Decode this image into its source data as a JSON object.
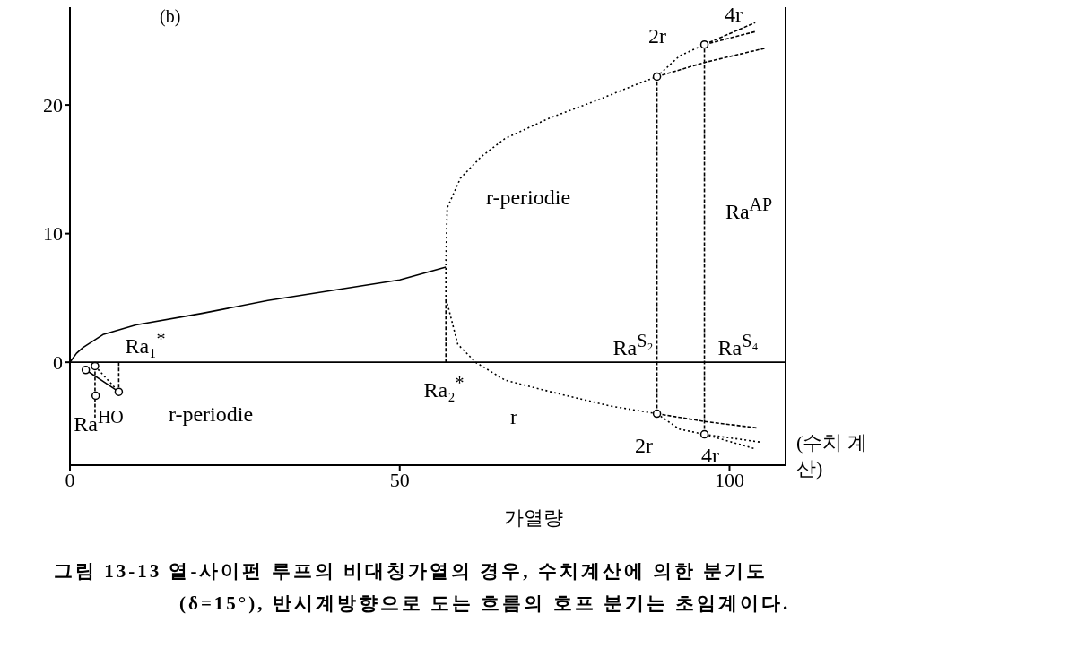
{
  "chart_data": {
    "type": "line",
    "xlabel": "가열량",
    "xlim": [
      0,
      108.5
    ],
    "ylim": [
      -8,
      27.6
    ],
    "xticks": [
      0,
      50,
      100
    ],
    "yticks": [
      0,
      10,
      20
    ],
    "series": [
      {
        "type": "line",
        "color": "#000000",
        "line_style": "solid",
        "x": [
          0,
          1,
          2,
          5,
          10,
          20,
          30,
          40,
          50,
          57
        ],
        "values": [
          0,
          0.7,
          1.15,
          2.15,
          2.9,
          3.8,
          4.8,
          5.6,
          6.4,
          7.4
        ]
      },
      {
        "type": "line",
        "color": "#000000",
        "line_style": "solid",
        "x": [
          0,
          108.5
        ],
        "values": [
          0,
          0
        ]
      },
      {
        "type": "line",
        "color": "#000000",
        "line_style": "dotted",
        "x": [
          89,
          81.9,
          73.7,
          66,
          61.5,
          58.8,
          57.4,
          57,
          57,
          57.2,
          59.2,
          62.4,
          66,
          72.8,
          79.6,
          86.4,
          89
        ],
        "values": [
          -4,
          -3.4,
          -2.4,
          -1.4,
          0,
          1.4,
          4.2,
          4.9,
          7.8,
          12,
          14.3,
          16,
          17.4,
          19,
          20.3,
          21.7,
          22.2
        ]
      },
      {
        "type": "line",
        "color": "#000000",
        "line_style": "dashed",
        "x": [
          57,
          57
        ],
        "values": [
          0,
          4.9
        ]
      },
      {
        "type": "line",
        "color": "#000000",
        "line_style": "dashed",
        "x": [
          89,
          96.2,
          105.3
        ],
        "values": [
          22.2,
          23.3,
          24.4
        ]
      },
      {
        "type": "line",
        "color": "#000000",
        "line_style": "dotted",
        "x": [
          89,
          92.4,
          96.2
        ],
        "values": [
          22.2,
          23.8,
          24.7
        ]
      },
      {
        "type": "line",
        "color": "#000000",
        "line_style": "dashed",
        "x": [
          96.2,
          103.9
        ],
        "values": [
          24.7,
          25.7
        ]
      },
      {
        "type": "line",
        "color": "#000000",
        "line_style": "dashed",
        "x": [
          96.2,
          103.9
        ],
        "values": [
          24.7,
          26.4
        ]
      },
      {
        "type": "line",
        "color": "#000000",
        "line_style": "dashed",
        "x": [
          89,
          96.2,
          104.1
        ],
        "values": [
          -4,
          -4.6,
          -5.1
        ]
      },
      {
        "type": "line",
        "color": "#000000",
        "line_style": "dotted",
        "x": [
          89,
          92.4,
          96.2
        ],
        "values": [
          -4,
          -5.2,
          -5.6
        ]
      },
      {
        "type": "line",
        "color": "#000000",
        "line_style": "dotted",
        "x": [
          96.2,
          104.6
        ],
        "values": [
          -5.6,
          -6.2
        ]
      },
      {
        "type": "line",
        "color": "#000000",
        "line_style": "dotted",
        "x": [
          96.2,
          103.7
        ],
        "values": [
          -5.6,
          -6.7
        ]
      },
      {
        "type": "line",
        "color": "#000000",
        "line_style": "dashed",
        "x": [
          89,
          89
        ],
        "values": [
          -4,
          22.2
        ]
      },
      {
        "type": "line",
        "color": "#000000",
        "line_style": "dashed",
        "x": [
          96.2,
          96.2
        ],
        "values": [
          -5.6,
          24.7
        ]
      },
      {
        "type": "line",
        "color": "#000000",
        "line_style": "solid",
        "x": [
          2.4,
          4.5,
          7.4
        ],
        "values": [
          -0.6,
          -1.3,
          -2.3
        ]
      },
      {
        "type": "line",
        "color": "#000000",
        "line_style": "dotted",
        "x": [
          3.8,
          7.4
        ],
        "values": [
          -0.3,
          -2.3
        ]
      },
      {
        "type": "line",
        "color": "#000000",
        "line_style": "dashed",
        "x": [
          7.4,
          7.4
        ],
        "values": [
          0,
          -2.3
        ]
      },
      {
        "type": "line",
        "color": "#000000",
        "line_style": "dashed",
        "x": [
          3.8,
          3.8
        ],
        "values": [
          -0.3,
          -4.3
        ]
      },
      {
        "type": "scatter",
        "color": "#000000",
        "marker": "circle",
        "x": [
          2.4,
          3.8,
          7.4,
          3.9,
          89,
          96.2,
          89,
          96.2
        ],
        "values": [
          -0.6,
          -0.3,
          -2.3,
          -2.6,
          22.2,
          24.7,
          -4,
          -5.6
        ]
      }
    ],
    "annotations": [
      "(b)",
      "(수치 계산)",
      "그림 13-13 열-사이펀 루프의 비대칭가열의 경우, 수치계산에 의한 분기도 (δ=15°), 반시계방향으로 도는 흐름의 호프 분기는 초임계이다.",
      "Ra₁$^{*}$",
      "Ra₂$^{*}$",
      "Ra$^{HO}$",
      "r-periodie",
      "r-periodie",
      "r",
      "2r",
      "4r",
      "2r",
      "4r",
      "Ra$^{AP}$",
      "Ra$^{S₂}$",
      "Ra$^{S₄}$"
    ]
  }
}
